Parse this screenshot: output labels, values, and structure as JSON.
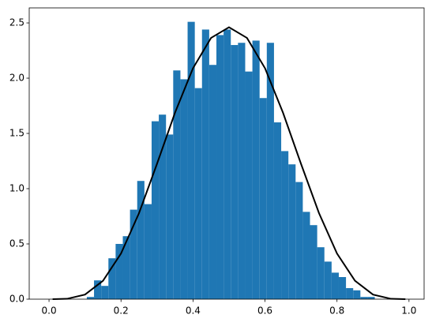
{
  "chart_data": {
    "type": "histogram",
    "bins": [
      0.105,
      0.125,
      0.145,
      0.165,
      0.185,
      0.205,
      0.225,
      0.245,
      0.265,
      0.285,
      0.305,
      0.325,
      0.345,
      0.365,
      0.385,
      0.405,
      0.425,
      0.445,
      0.465,
      0.485,
      0.505,
      0.525,
      0.545,
      0.565,
      0.585,
      0.605,
      0.625,
      0.645,
      0.665,
      0.685,
      0.705,
      0.725,
      0.745,
      0.765,
      0.785,
      0.805,
      0.825,
      0.845,
      0.865,
      0.885,
      0.905
    ],
    "values": [
      0.02,
      0.17,
      0.12,
      0.37,
      0.5,
      0.57,
      0.81,
      1.07,
      0.86,
      1.61,
      1.67,
      1.49,
      2.07,
      1.99,
      2.51,
      1.91,
      2.44,
      2.12,
      2.39,
      2.44,
      2.3,
      2.32,
      2.06,
      2.34,
      1.82,
      2.32,
      1.6,
      1.34,
      1.22,
      1.06,
      0.79,
      0.67,
      0.47,
      0.34,
      0.24,
      0.2,
      0.1,
      0.08,
      0.02,
      0.02
    ],
    "color": "#1f77b4",
    "curve": {
      "color": "#000000",
      "x": [
        0.01,
        0.05,
        0.1,
        0.15,
        0.2,
        0.25,
        0.3,
        0.35,
        0.4,
        0.45,
        0.5,
        0.55,
        0.6,
        0.65,
        0.7,
        0.75,
        0.8,
        0.85,
        0.9,
        0.95,
        0.99
      ],
      "values": [
        1e-05,
        0.0032,
        0.0413,
        0.1665,
        0.4129,
        0.7787,
        1.2252,
        1.6876,
        2.0902,
        2.364,
        2.4609,
        2.364,
        2.0902,
        1.6876,
        1.2252,
        0.7787,
        0.4129,
        0.1665,
        0.0413,
        0.0032,
        1e-05
      ]
    },
    "xlim": [
      -0.055,
      1.042
    ],
    "ylim": [
      0,
      2.636
    ],
    "xticks": [
      {
        "value": 0,
        "label": "0.0"
      },
      {
        "value": 0.2,
        "label": "0.2"
      },
      {
        "value": 0.4,
        "label": "0.4"
      },
      {
        "value": 0.6,
        "label": "0.6"
      },
      {
        "value": 0.8,
        "label": "0.8"
      },
      {
        "value": 1,
        "label": "1.0"
      }
    ],
    "yticks": [
      {
        "value": 0,
        "label": "0.0"
      },
      {
        "value": 0.5,
        "label": "0.5"
      },
      {
        "value": 1,
        "label": "1.0"
      },
      {
        "value": 1.5,
        "label": "1.5"
      },
      {
        "value": 2,
        "label": "2.0"
      },
      {
        "value": 2.5,
        "label": "2.5"
      }
    ]
  }
}
